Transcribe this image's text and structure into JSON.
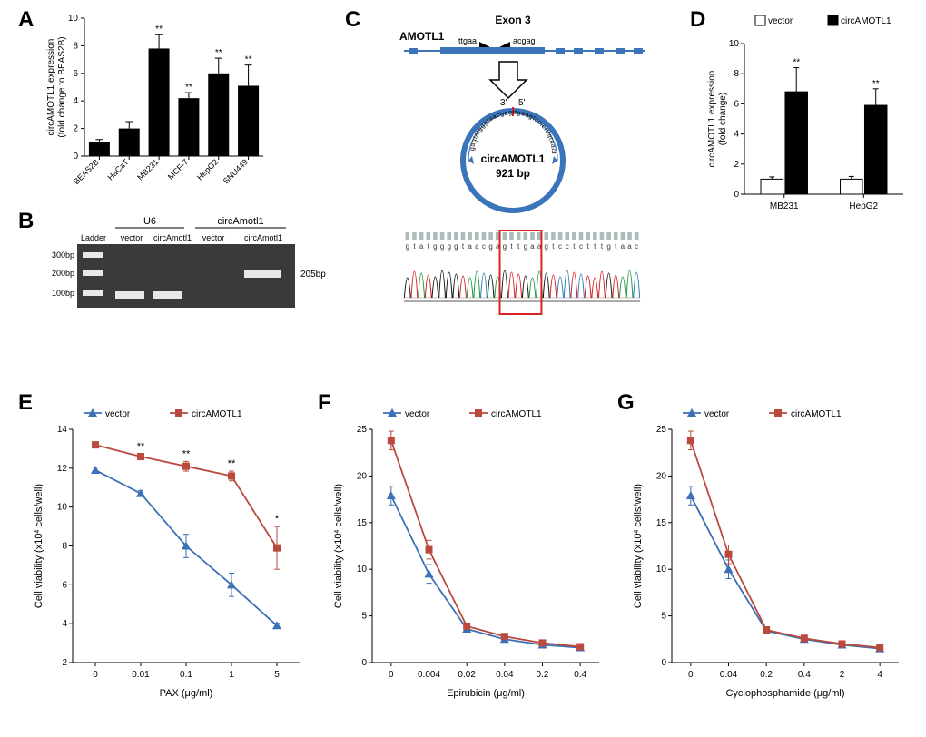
{
  "panelA": {
    "label": "A",
    "type": "bar",
    "categories": [
      "BEAS2B",
      "HaCaT",
      "MB231",
      "MCF-7",
      "HepG2",
      "SNU449"
    ],
    "values": [
      1.0,
      2.0,
      7.8,
      4.2,
      6.0,
      5.1
    ],
    "errors": [
      0.2,
      0.5,
      1.0,
      0.4,
      1.1,
      1.5
    ],
    "sig": [
      "",
      "",
      "**",
      "**",
      "**",
      "**"
    ],
    "ylim": [
      0,
      10
    ],
    "ytick_step": 2,
    "bar_color": "#000000",
    "ylabel1": "circAMOTL1 expression",
    "ylabel2": "(fold change to BEAS2B)"
  },
  "panelB": {
    "label": "B",
    "lanes_top": [
      "U6",
      "circAmotl1"
    ],
    "lanes_bottom": [
      "Ladder",
      "vector",
      "circAmotl1",
      "vector",
      "circAmotl1"
    ],
    "ladder_labels": [
      "300bp",
      "200bp",
      "100bp"
    ],
    "product_label": "205bp"
  },
  "panelC": {
    "label": "C",
    "gene": "AMOTL1",
    "exon": "Exon 3",
    "seq_left": "ttgaa",
    "seq_right": "acgag",
    "circ_name": "circAMOTL1",
    "circ_size": "921 bp",
    "circ_seq_left": "gagtatgggtaacgag",
    "circ_seq_right": "ttgaagtcctctttgtaact",
    "five": "5'",
    "three": "3'",
    "sanger_seq": "gtatggggtaacgagttgaagtcctctttgtaac",
    "junction_start": 14,
    "junction_end": 19
  },
  "panelD": {
    "label": "D",
    "groups": [
      "MB231",
      "HepG2"
    ],
    "series": [
      {
        "name": "vector",
        "color": "#ffffff",
        "values": [
          1.0,
          1.0
        ],
        "errors": [
          0.15,
          0.18
        ]
      },
      {
        "name": "circAMOTL1",
        "color": "#000000",
        "values": [
          6.8,
          5.9
        ],
        "errors": [
          1.6,
          1.1
        ]
      }
    ],
    "sig": [
      "**",
      "**"
    ],
    "ylim": [
      0,
      10
    ],
    "ytick_step": 2,
    "ylabel1": "circAMOTL1 expression",
    "ylabel2": "(fold change)"
  },
  "panelE": {
    "label": "E",
    "xticks": [
      "0",
      "0.01",
      "0.1",
      "1",
      "5"
    ],
    "series": [
      {
        "name": "vector",
        "color": "#3b6fb6",
        "marker": "triangle",
        "values": [
          11.9,
          10.7,
          8.0,
          6.0,
          3.9
        ],
        "errors": [
          0.15,
          0.15,
          0.6,
          0.6,
          0.12
        ]
      },
      {
        "name": "circAMOTL1",
        "color": "#b94a3d",
        "marker": "square",
        "values": [
          13.2,
          12.6,
          12.1,
          11.6,
          7.9
        ],
        "errors": [
          0.15,
          0.15,
          0.25,
          0.25,
          1.1
        ]
      }
    ],
    "sig": [
      "",
      "**",
      "**",
      "**",
      "*"
    ],
    "ylim": [
      2,
      14
    ],
    "ytick_step": 2,
    "xlabel": "PAX (μg/ml)",
    "ylabel1": "Cell viability (x10",
    "ylabel_sup": "4",
    "ylabel2": " cells/well)"
  },
  "panelF": {
    "label": "F",
    "xticks": [
      "0",
      "0.004",
      "0.02",
      "0.04",
      "0.2",
      "0.4"
    ],
    "series": [
      {
        "name": "vector",
        "color": "#3b6fb6",
        "marker": "triangle",
        "values": [
          17.9,
          9.5,
          3.6,
          2.5,
          1.9,
          1.6
        ],
        "errors": [
          1.0,
          1.0,
          0.3,
          0.3,
          0.3,
          0.3
        ]
      },
      {
        "name": "circAMOTL1",
        "color": "#b94a3d",
        "marker": "square",
        "values": [
          23.8,
          12.1,
          3.9,
          2.8,
          2.1,
          1.7
        ],
        "errors": [
          1.0,
          1.0,
          0.3,
          0.3,
          0.3,
          0.3
        ]
      }
    ],
    "sig": [
      "",
      "",
      "",
      "",
      "",
      ""
    ],
    "ylim": [
      0,
      25
    ],
    "ytick_step": 5,
    "xlabel": "Epirubicin (μg/ml)",
    "ylabel1": "Cell viability (x10",
    "ylabel_sup": "4",
    "ylabel2": " cells/well)"
  },
  "panelG": {
    "label": "G",
    "xticks": [
      "0",
      "0.04",
      "0.2",
      "0.4",
      "2",
      "4"
    ],
    "series": [
      {
        "name": "vector",
        "color": "#3b6fb6",
        "marker": "triangle",
        "values": [
          17.9,
          10.0,
          3.4,
          2.5,
          1.9,
          1.5
        ],
        "errors": [
          1.0,
          1.0,
          0.3,
          0.3,
          0.3,
          0.3
        ]
      },
      {
        "name": "circAMOTL1",
        "color": "#b94a3d",
        "marker": "square",
        "values": [
          23.8,
          11.6,
          3.5,
          2.6,
          2.0,
          1.6
        ],
        "errors": [
          1.0,
          1.0,
          0.3,
          0.3,
          0.3,
          0.3
        ]
      }
    ],
    "sig": [
      "",
      "",
      "",
      "",
      "",
      ""
    ],
    "ylim": [
      0,
      25
    ],
    "ytick_step": 5,
    "xlabel": "Cyclophosphamide (μg/ml)",
    "ylabel1": "Cell viability (x10",
    "ylabel_sup": "4",
    "ylabel2": " cells/well)"
  },
  "colors": {
    "background": "#ffffff",
    "axis": "#000000",
    "blue": "#3b6fb6",
    "red": "#b94a3d",
    "exon_blue": "#3b74b9",
    "gel_bg": "#3a3a3a",
    "gel_band": "#e8e8e8",
    "box_red": "#d22",
    "chrom_bg": "#f5f5f5"
  }
}
